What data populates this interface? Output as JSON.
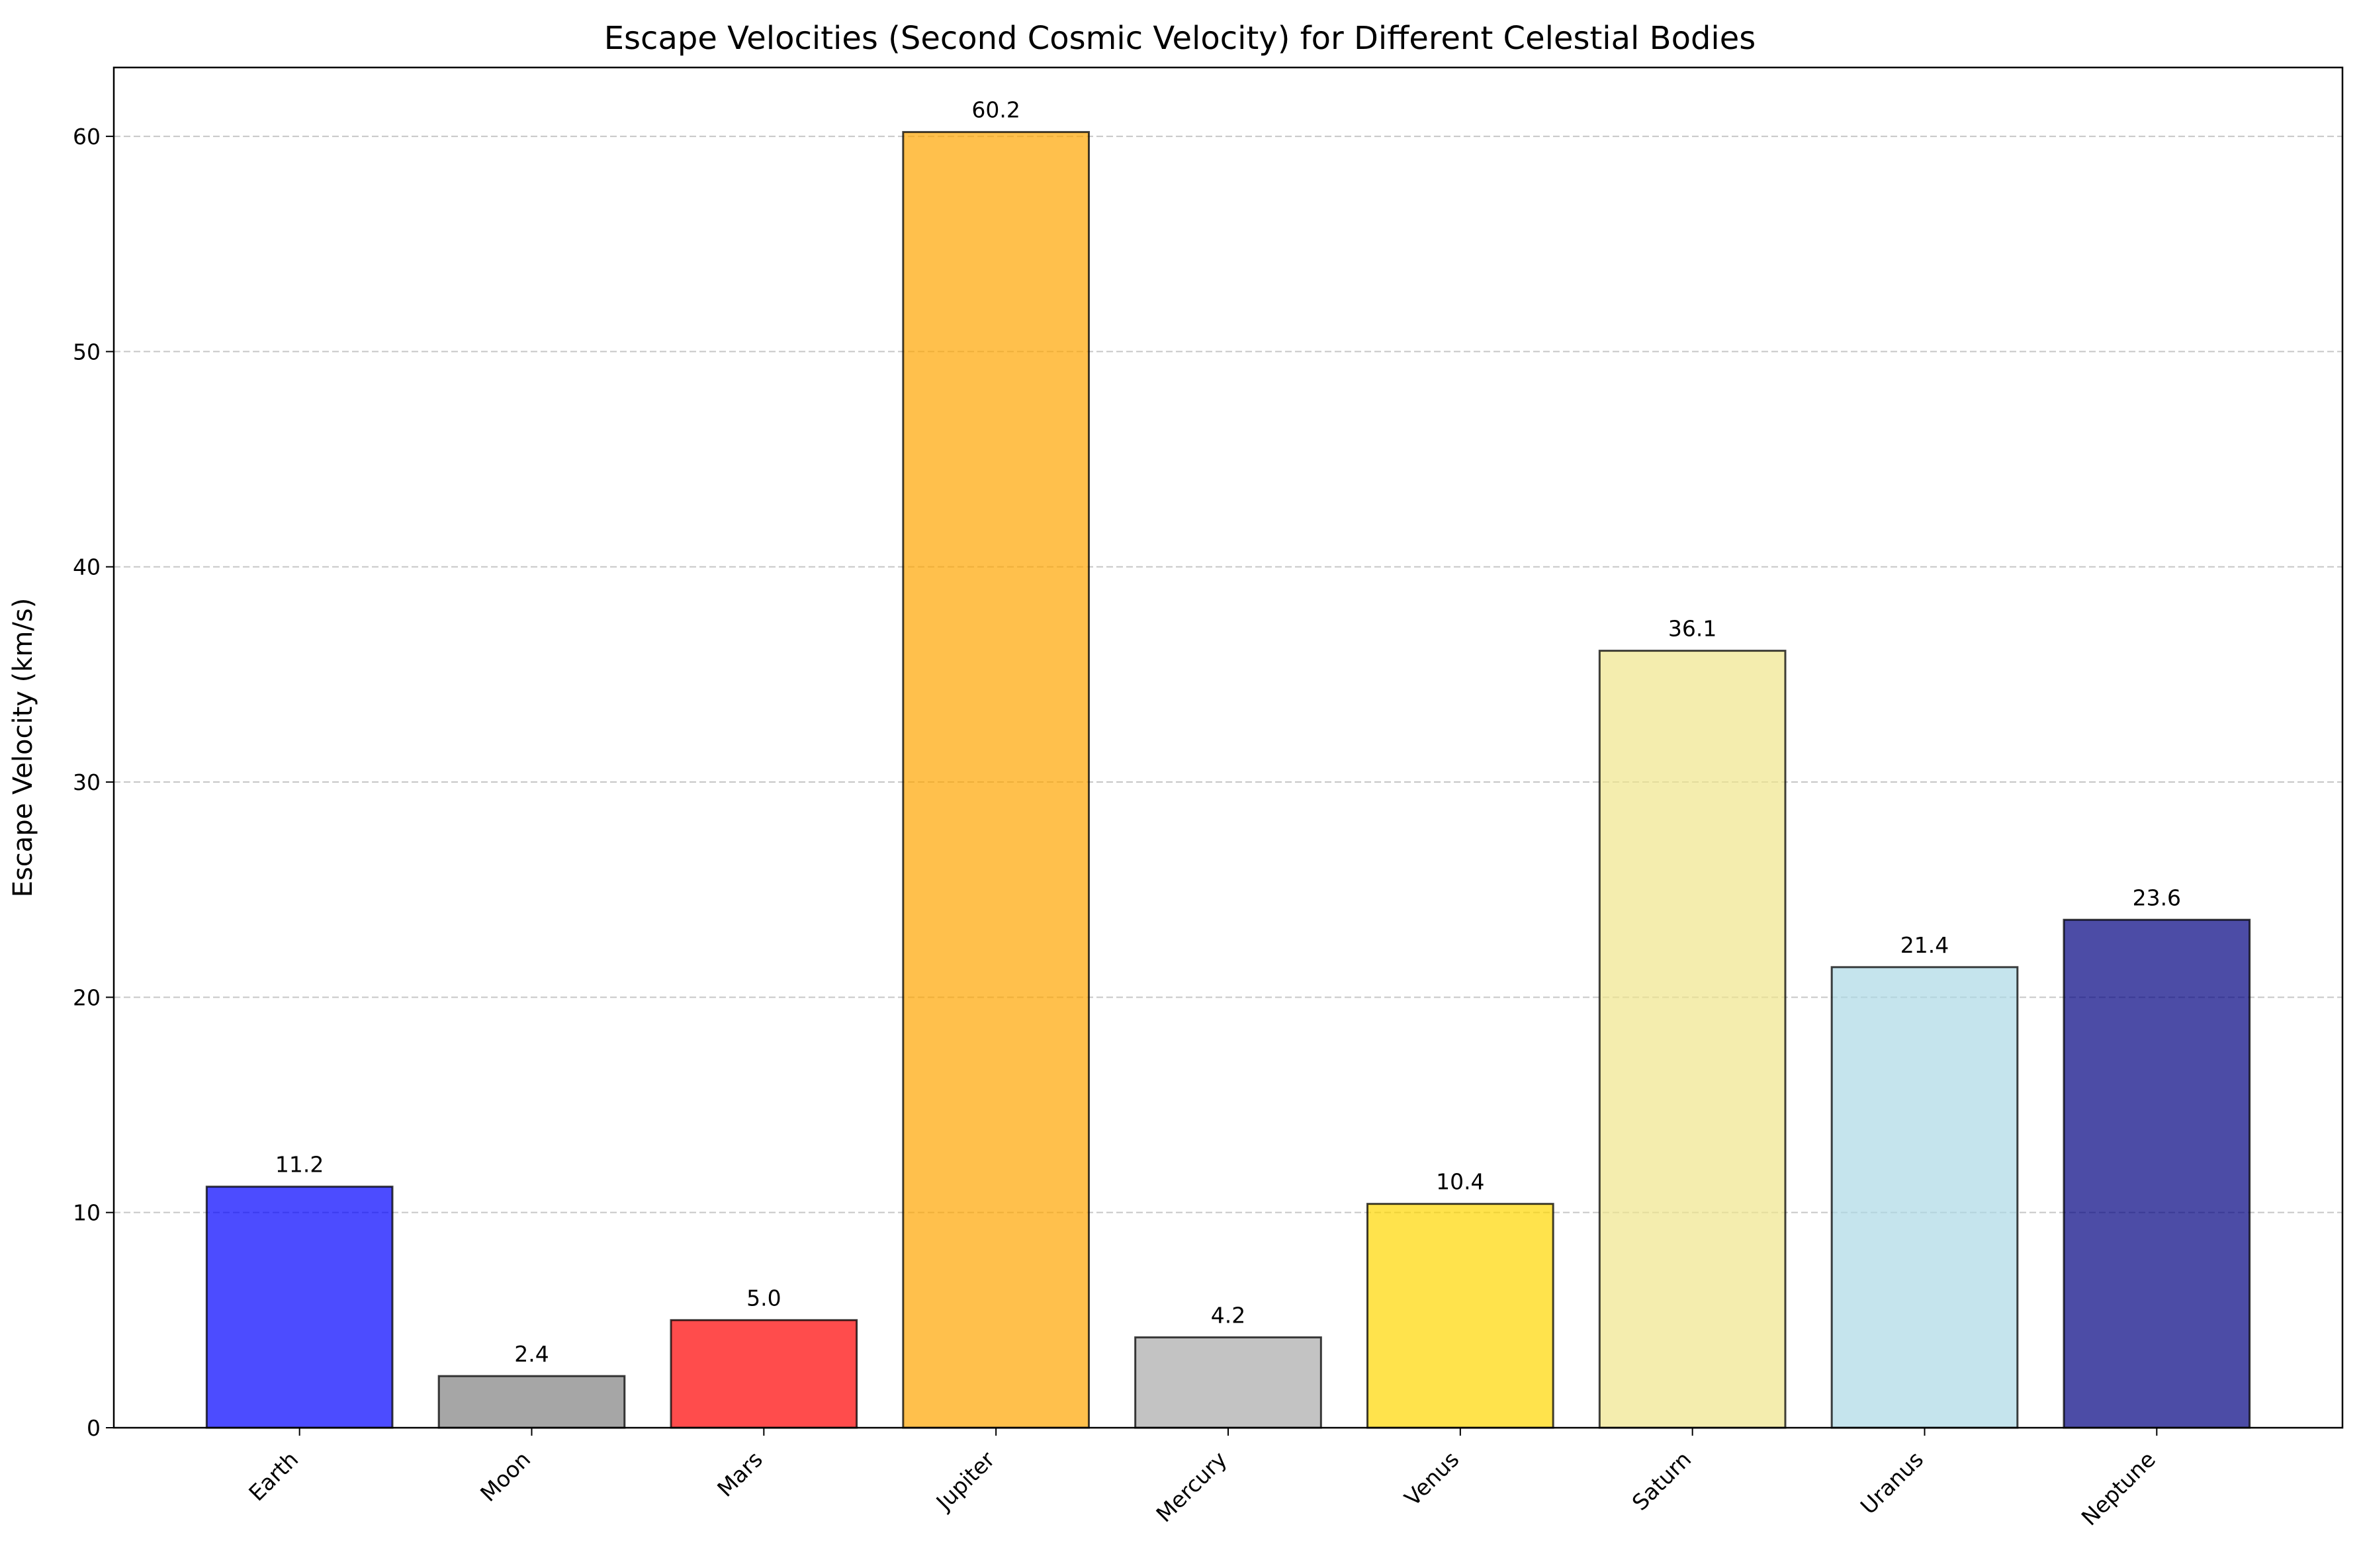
{
  "chart_data": {
    "type": "bar",
    "title": "Escape Velocities (Second Cosmic Velocity) for Different Celestial Bodies",
    "xlabel": "",
    "ylabel": "Escape Velocity (km/s)",
    "categories": [
      "Earth",
      "Moon",
      "Mars",
      "Jupiter",
      "Mercury",
      "Venus",
      "Saturn",
      "Uranus",
      "Neptune"
    ],
    "values": [
      11.2,
      2.4,
      5.0,
      60.2,
      4.2,
      10.4,
      36.1,
      21.4,
      23.6
    ],
    "value_labels": [
      "11.2",
      "2.4",
      "5.0",
      "60.2",
      "4.2",
      "10.4",
      "36.1",
      "21.4",
      "23.6"
    ],
    "colors": [
      "#0000ff",
      "#808080",
      "#ff0000",
      "#ffa500",
      "#a9a9a9",
      "#ffd700",
      "#f0e68c",
      "#add8e6",
      "#000080"
    ],
    "bar_alpha": 0.7,
    "ylim": [
      0,
      63.2
    ],
    "yticks": [
      0,
      10,
      20,
      30,
      40,
      50,
      60
    ],
    "grid": "y-dashed",
    "legend": "none"
  }
}
